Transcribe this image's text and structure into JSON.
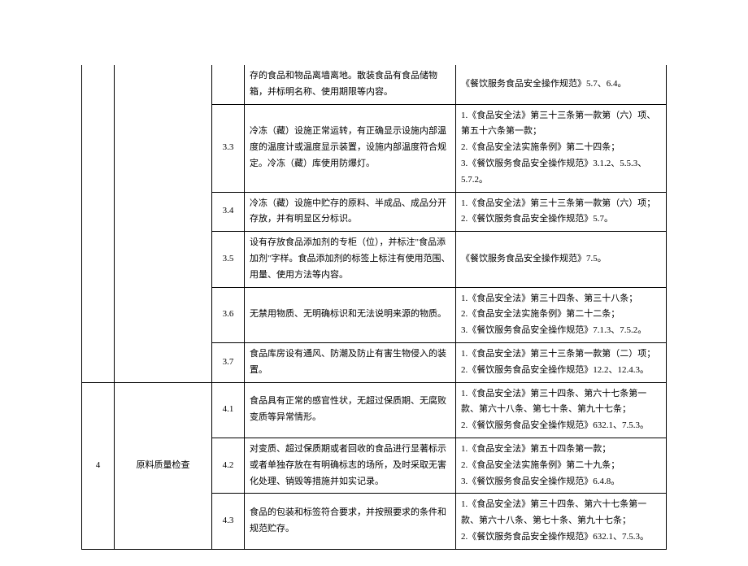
{
  "background_color": "#ffffff",
  "border_color": "#000000",
  "text_color": "#000000",
  "font_size": 11,
  "font_family": "SimSun",
  "line_height": 1.8,
  "columns": {
    "id_width": 40,
    "category_width": 120,
    "num_width": 40,
    "desc_width": 260
  },
  "rows": [
    {
      "id": "",
      "category": "",
      "num": "",
      "desc": "存的食品和物品离墙离地。散装食品有食品储物箱，并标明名称、使用期限等内容。",
      "law": "《餐饮服务食品安全操作规范》5.7、6.4。",
      "continued": true
    },
    {
      "num": "3.3",
      "desc": "冷冻（藏）设施正常运转，有正确显示设施内部温度的温度计或温度显示装置，设施内部温度符合规定。冷冻（藏）库使用防爆灯。",
      "law": "1.《食品安全法》第三十三条第一款第（六）项、第五十六条第一款；\n2.《食品安全法实施条例》第二十四条；\n3.《餐饮服务食品安全操作规范》3.1.2、5.5.3、5.7.2。"
    },
    {
      "num": "3.4",
      "desc": "冷冻（藏）设施中贮存的原料、半成品、成品分开存放，并有明显区分标识。",
      "law": "1.《食品安全法》第三十三条第一款第（六）项；\n2.《餐饮服务食品安全操作规范》5.7。"
    },
    {
      "num": "3.5",
      "desc": "设有存放食品添加剂的专柜（位），并标注\"食品添加剂\"字样。食品添加剂的标签上标注有使用范围、用量、使用方法等内容。",
      "law": "《餐饮服务食品安全操作规范》7.5。"
    },
    {
      "num": "3.6",
      "desc": "无禁用物质、无明确标识和无法说明来源的物质。",
      "law": "1.《食品安全法》第三十四条、第三十八条；\n2.《食品安全法实施条例》第二十二条；\n3.《餐饮服务食品安全操作规范》7.1.3、7.5.2。"
    },
    {
      "num": "3.7",
      "desc": "食品库房设有通风、防潮及防止有害生物侵入的装置。",
      "law": "1.《食品安全法》第三十三条第一款第（二）项；\n2.《餐饮服务食品安全操作规范》12.2、12.4.3。"
    },
    {
      "id": "4",
      "category": "原料质量检查",
      "num": "4.1",
      "desc": "食品具有正常的感官性状，无超过保质期、无腐败变质等异常情形。",
      "law": "1.《食品安全法》第三十四条、第六十七条第一款、第六十八条、第七十条、第九十七条；\n2.《餐饮服务食品安全操作规范》632.1、7.5.3。",
      "rowspan": 3
    },
    {
      "num": "4.2",
      "desc": "对变质、超过保质期或者回收的食品进行显著标示或者单独存放在有明确标志的场所，及时采取无害化处理、销毁等措施并如实记录。",
      "law": "1.《食品安全法》第五十四条第一款；\n2.《食品安全法实施条例》第二十九条；\n3.《餐饮服务食品安全操作规范》6.4.8。"
    },
    {
      "num": "4.3",
      "desc": "食品的包装和标签符合要求，并按照要求的条件和规范贮存。",
      "law": "1.《食品安全法》第三十四条、第六十七条第一款、第六十八条、第七十条、第九十七条；\n2.《餐饮服务食品安全操作规范》632.1、7.5.3。"
    }
  ]
}
